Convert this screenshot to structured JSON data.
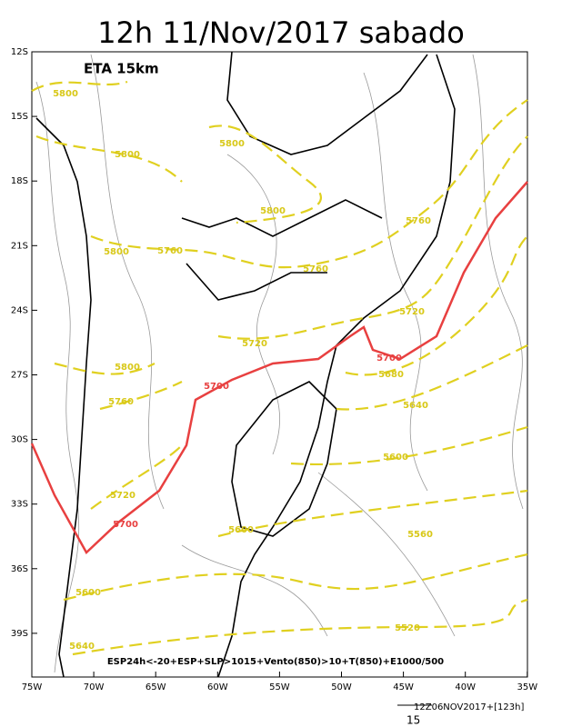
{
  "title": "12h 11/Nov/2017 sabado",
  "model_label": "ETA 15km",
  "caption": "ESP24h<-20+ESP+SLP>1015+Vento(850)>10+T(850)+E1000/500",
  "run_info": "12Z06NOV2017+[123h]",
  "scale_label": "15",
  "lat_ticks": [
    "12S",
    "15S",
    "18S",
    "21S",
    "24S",
    "27S",
    "30S",
    "33S",
    "36S",
    "39S"
  ],
  "lon_ticks": [
    "75W",
    "70W",
    "65W",
    "60W",
    "55W",
    "50W",
    "45W",
    "40W",
    "35W"
  ],
  "contour_labels": [
    "5800",
    "5800",
    "5800",
    "5800",
    "5800",
    "5760",
    "5760",
    "5760",
    "5720",
    "5720",
    "5800",
    "5760",
    "5700",
    "5700",
    "5680",
    "5640",
    "5600",
    "5720",
    "5700",
    "5600",
    "5560",
    "5600",
    "5520",
    "5640"
  ]
}
